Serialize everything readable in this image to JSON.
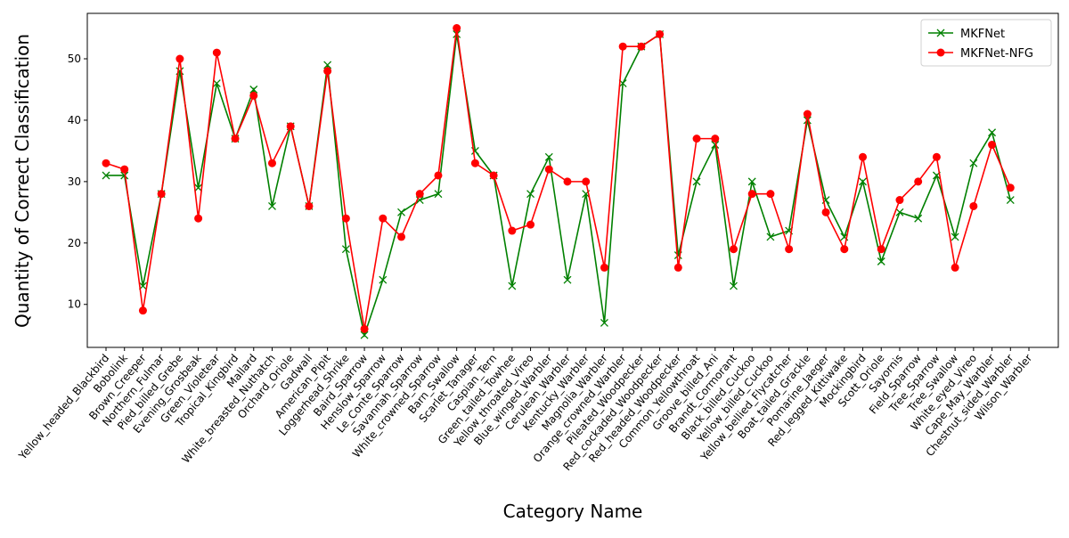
{
  "chart_data": {
    "type": "line",
    "xlabel": "Category Name",
    "ylabel": "Quantity of Correct Classification",
    "categories": [
      "Yellow_headed_Blackbird",
      "Bobolink",
      "Brown_Creeper",
      "Northern_Fulmar",
      "Pied_billed_Grebe",
      "Evening_Grosbeak",
      "Green_Violetear",
      "Tropical_Kingbird",
      "Mallard",
      "White_breasted_Nuthatch",
      "Orchard_Oriole",
      "Gadwall",
      "American_Pipit",
      "Loggerhead_Shrike",
      "Baird_Sparrow",
      "Henslow_Sparrow",
      "Le_Conte_Sparrow",
      "Savannah_Sparrow",
      "White_crowned_Sparrow",
      "Barn_Swallow",
      "Scarlet_Tanager",
      "Caspian_Tern",
      "Green_tailed_Towhee",
      "Yellow_throated_Vireo",
      "Blue_winged_Warbler",
      "Cerulean_Warbler",
      "Kentucky_Warbler",
      "Magnolia_Warbler",
      "Orange_crowned_Warbler",
      "Pileated_Woodpecker",
      "Red_cockaded_Woodpecker",
      "Red_headed_Woodpecker",
      "Common_Yellowthroat",
      "Groove_billed_Ani",
      "Brandt_Cormorant",
      "Black_billed_Cuckoo",
      "Yellow_billed_Cuckoo",
      "Yellow_bellied_Flycatcher",
      "Boat_tailed_Grackle",
      "Pomarine_Jaeger",
      "Red_legged_Kittiwake",
      "Mockingbird",
      "Scott_Oriole",
      "Sayornis",
      "Field_Sparrow",
      "Tree_Sparrow",
      "Tree_Swallow",
      "White_eyed_Vireo",
      "Cape_May_Warbler",
      "Chestnut_sided_Warbler",
      "Wilson_Warbler"
    ],
    "series": [
      {
        "name": "MKFNet",
        "color": "#008000",
        "marker": "x",
        "values": [
          31,
          31,
          13,
          28,
          48,
          29,
          46,
          37,
          45,
          26,
          39,
          26,
          49,
          19,
          5,
          14,
          25,
          27,
          28,
          54,
          35,
          31,
          13,
          28,
          34,
          14,
          28,
          7,
          46,
          52,
          54,
          18,
          30,
          36,
          13,
          30,
          21,
          22,
          40,
          27,
          21,
          30,
          17,
          25,
          24,
          31,
          21,
          33,
          38,
          27,
          null
        ]
      },
      {
        "name": "MKFNet-NFG",
        "color": "#ff0000",
        "marker": "o",
        "values": [
          33,
          32,
          9,
          28,
          50,
          24,
          51,
          37,
          44,
          33,
          39,
          26,
          48,
          24,
          6,
          24,
          21,
          28,
          31,
          55,
          33,
          31,
          22,
          23,
          32,
          30,
          30,
          16,
          52,
          52,
          54,
          16,
          37,
          37,
          19,
          28,
          28,
          19,
          41,
          25,
          19,
          34,
          19,
          27,
          30,
          34,
          16,
          26,
          36,
          29,
          null
        ]
      }
    ],
    "ylim": [
      3.0,
      57.4
    ],
    "yticks": [
      10,
      20,
      30,
      40,
      50
    ],
    "grid": false,
    "legend": "upper right"
  }
}
